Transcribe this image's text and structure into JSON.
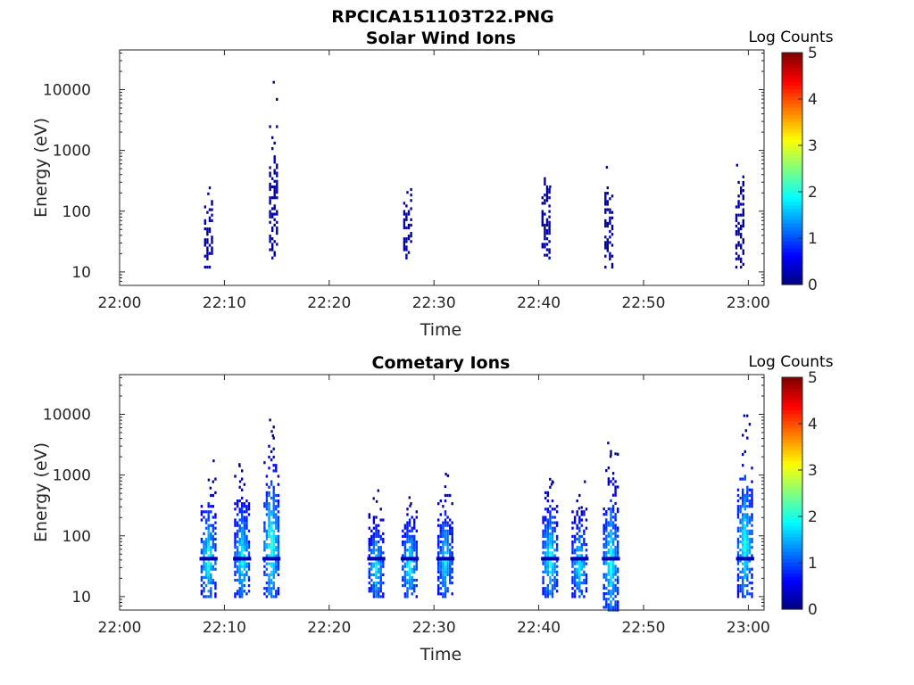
{
  "figure_title": "RPCICA151103T22.PNG",
  "chart_data": [
    {
      "type": "heatmap",
      "title": "Solar Wind Ions",
      "xlabel": "Time",
      "ylabel": "Energy (eV)",
      "x_ticks": [
        "22:00",
        "22:10",
        "22:20",
        "22:30",
        "22:40",
        "22:50",
        "23:00"
      ],
      "y_ticks": [
        "10",
        "100",
        "1000",
        "10000"
      ],
      "y_scale": "log",
      "ylim": [
        6,
        45000
      ],
      "xlim_minutes": [
        0,
        61.5
      ],
      "colorbar": {
        "label": "Log Counts",
        "range": [
          0,
          5
        ],
        "ticks": [
          "0",
          "1",
          "2",
          "3",
          "4",
          "5"
        ],
        "colormap": "jet"
      },
      "grid": false,
      "bursts": [
        {
          "t_min": 8.6,
          "energy_lo": 12,
          "energy_hi": 560,
          "peak_log_counts": 0.2
        },
        {
          "t_min": 14.8,
          "energy_lo": 17,
          "energy_hi": 15000,
          "peak_log_counts": 0.2
        },
        {
          "t_min": 27.6,
          "energy_lo": 17,
          "energy_hi": 500,
          "peak_log_counts": 0.2
        },
        {
          "t_min": 40.8,
          "energy_lo": 17,
          "energy_hi": 760,
          "peak_log_counts": 0.2
        },
        {
          "t_min": 46.8,
          "energy_lo": 12,
          "energy_hi": 700,
          "peak_log_counts": 0.2
        },
        {
          "t_min": 59.3,
          "energy_lo": 12,
          "energy_hi": 1100,
          "peak_log_counts": 0.2
        }
      ]
    },
    {
      "type": "heatmap",
      "title": "Cometary Ions",
      "xlabel": "Time",
      "ylabel": "Energy (eV)",
      "x_ticks": [
        "22:00",
        "22:10",
        "22:20",
        "22:30",
        "22:40",
        "22:50",
        "23:00"
      ],
      "y_ticks": [
        "10",
        "100",
        "1000",
        "10000"
      ],
      "y_scale": "log",
      "ylim": [
        6,
        45000
      ],
      "xlim_minutes": [
        0,
        61.5
      ],
      "colorbar": {
        "label": "Log Counts",
        "range": [
          0,
          5
        ],
        "ticks": [
          "0",
          "1",
          "2",
          "3",
          "4",
          "5"
        ],
        "colormap": "jet"
      },
      "grid": false,
      "bursts": [
        {
          "t_min": 8.6,
          "energy_lo": 10,
          "energy_hi": 1800,
          "peak_log_counts": 1.9
        },
        {
          "t_min": 11.8,
          "energy_lo": 10,
          "energy_hi": 2200,
          "peak_log_counts": 1.8
        },
        {
          "t_min": 14.6,
          "energy_lo": 10,
          "energy_hi": 14000,
          "peak_log_counts": 2.0
        },
        {
          "t_min": 24.6,
          "energy_lo": 10,
          "energy_hi": 600,
          "peak_log_counts": 1.7
        },
        {
          "t_min": 27.8,
          "energy_lo": 10,
          "energy_hi": 800,
          "peak_log_counts": 1.8
        },
        {
          "t_min": 31.2,
          "energy_lo": 10,
          "energy_hi": 1400,
          "peak_log_counts": 1.7
        },
        {
          "t_min": 41.2,
          "energy_lo": 10,
          "energy_hi": 1900,
          "peak_log_counts": 1.9
        },
        {
          "t_min": 44.0,
          "energy_lo": 10,
          "energy_hi": 800,
          "peak_log_counts": 1.7
        },
        {
          "t_min": 47.0,
          "energy_lo": 6,
          "energy_hi": 4200,
          "peak_log_counts": 1.9
        },
        {
          "t_min": 59.8,
          "energy_lo": 10,
          "energy_hi": 15000,
          "peak_log_counts": 1.9
        }
      ]
    }
  ]
}
